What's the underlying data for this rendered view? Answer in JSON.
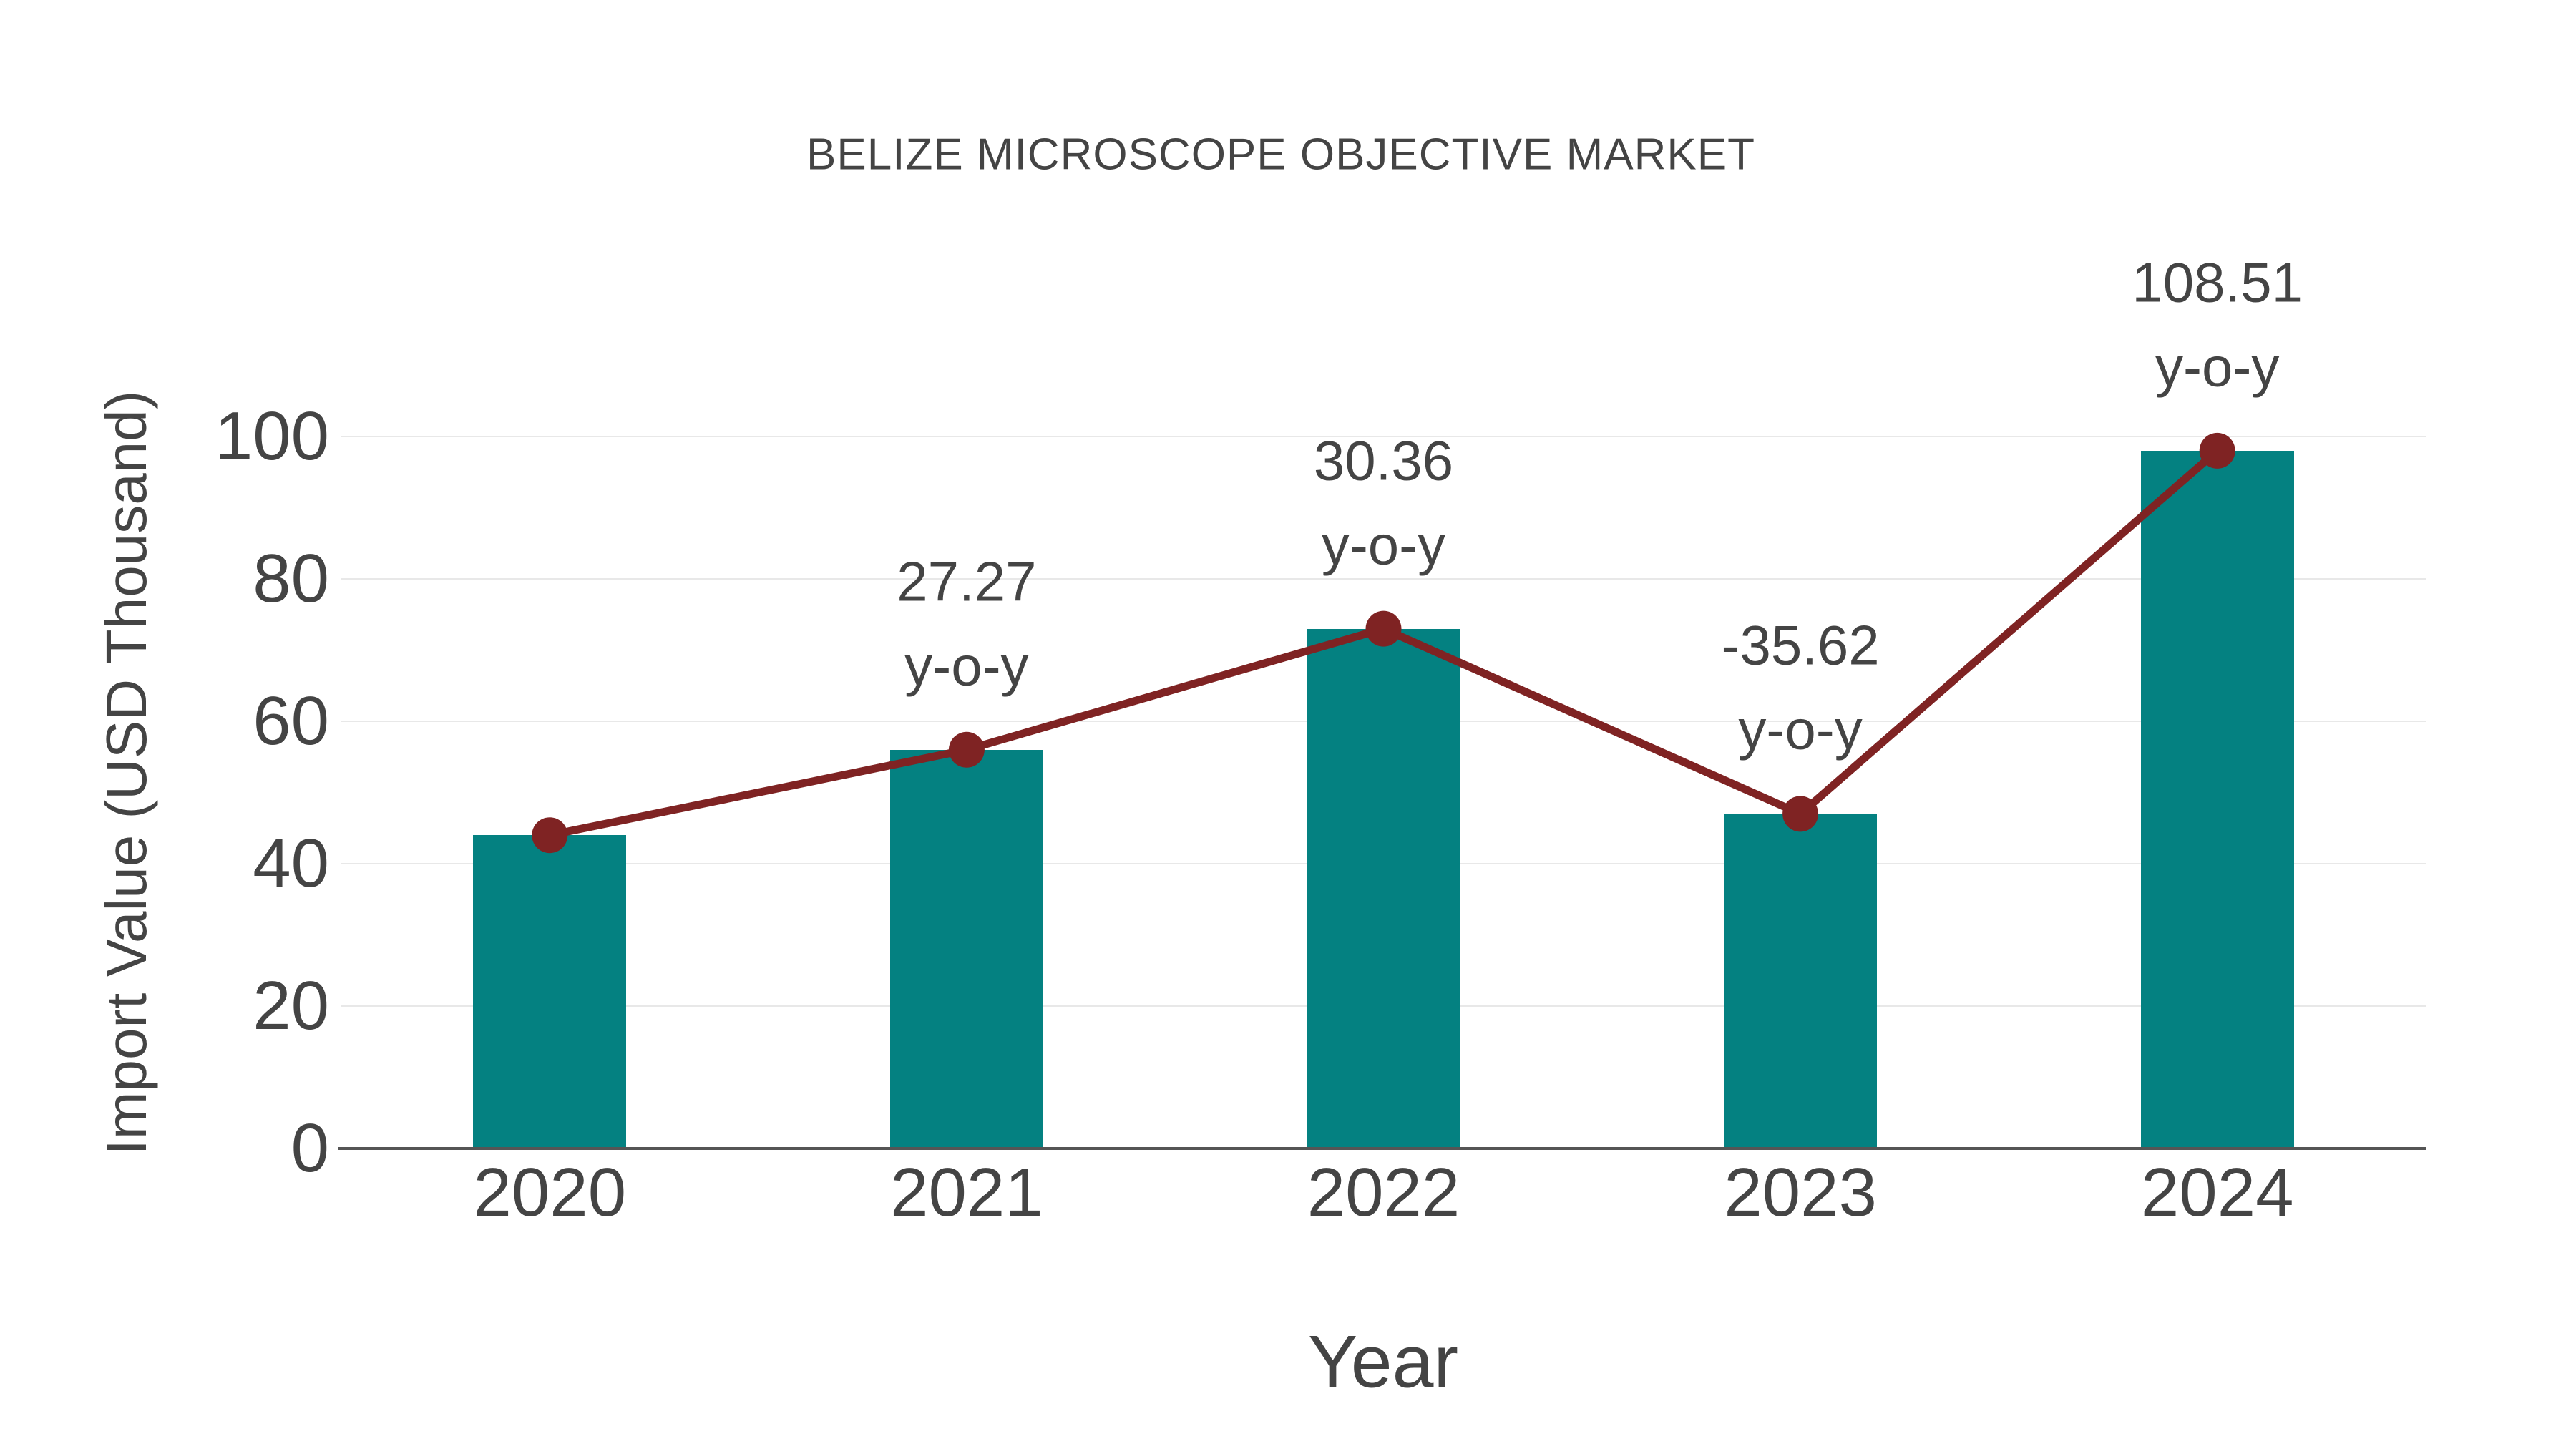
{
  "chart": {
    "title": "BELIZE MICROSCOPE OBJECTIVE MARKET",
    "x_axis_title": "Year",
    "y_axis_title": "Import Value (USD Thousand)"
  },
  "chart_data": {
    "type": "bar",
    "title": "BELIZE MICROSCOPE OBJECTIVE MARKET",
    "xlabel": "Year",
    "ylabel": "Import Value (USD Thousand)",
    "categories": [
      "2020",
      "2021",
      "2022",
      "2023",
      "2024"
    ],
    "series": [
      {
        "name": "Import Value bars",
        "type": "bar",
        "values": [
          44,
          56,
          73,
          47,
          98
        ]
      },
      {
        "name": "Import Value trend",
        "type": "line",
        "values": [
          44,
          56,
          73,
          47,
          98
        ]
      }
    ],
    "annotations": [
      {
        "category": "2021",
        "line1": "27.27",
        "line2": "y-o-y"
      },
      {
        "category": "2022",
        "line1": "30.36",
        "line2": "y-o-y"
      },
      {
        "category": "2023",
        "line1": "-35.62",
        "line2": "y-o-y"
      },
      {
        "category": "2024",
        "line1": "108.51",
        "line2": "y-o-y"
      }
    ],
    "yticks": [
      0,
      20,
      40,
      60,
      80,
      100
    ],
    "ylim": [
      0,
      105
    ],
    "grid": true,
    "legend": false
  },
  "colors": {
    "bar": "#048181",
    "line": "#7F2323",
    "marker": "#7F2323",
    "text": "#444444",
    "grid": "#E8E8E8",
    "axis": "#555555",
    "background": "#FFFFFF"
  }
}
